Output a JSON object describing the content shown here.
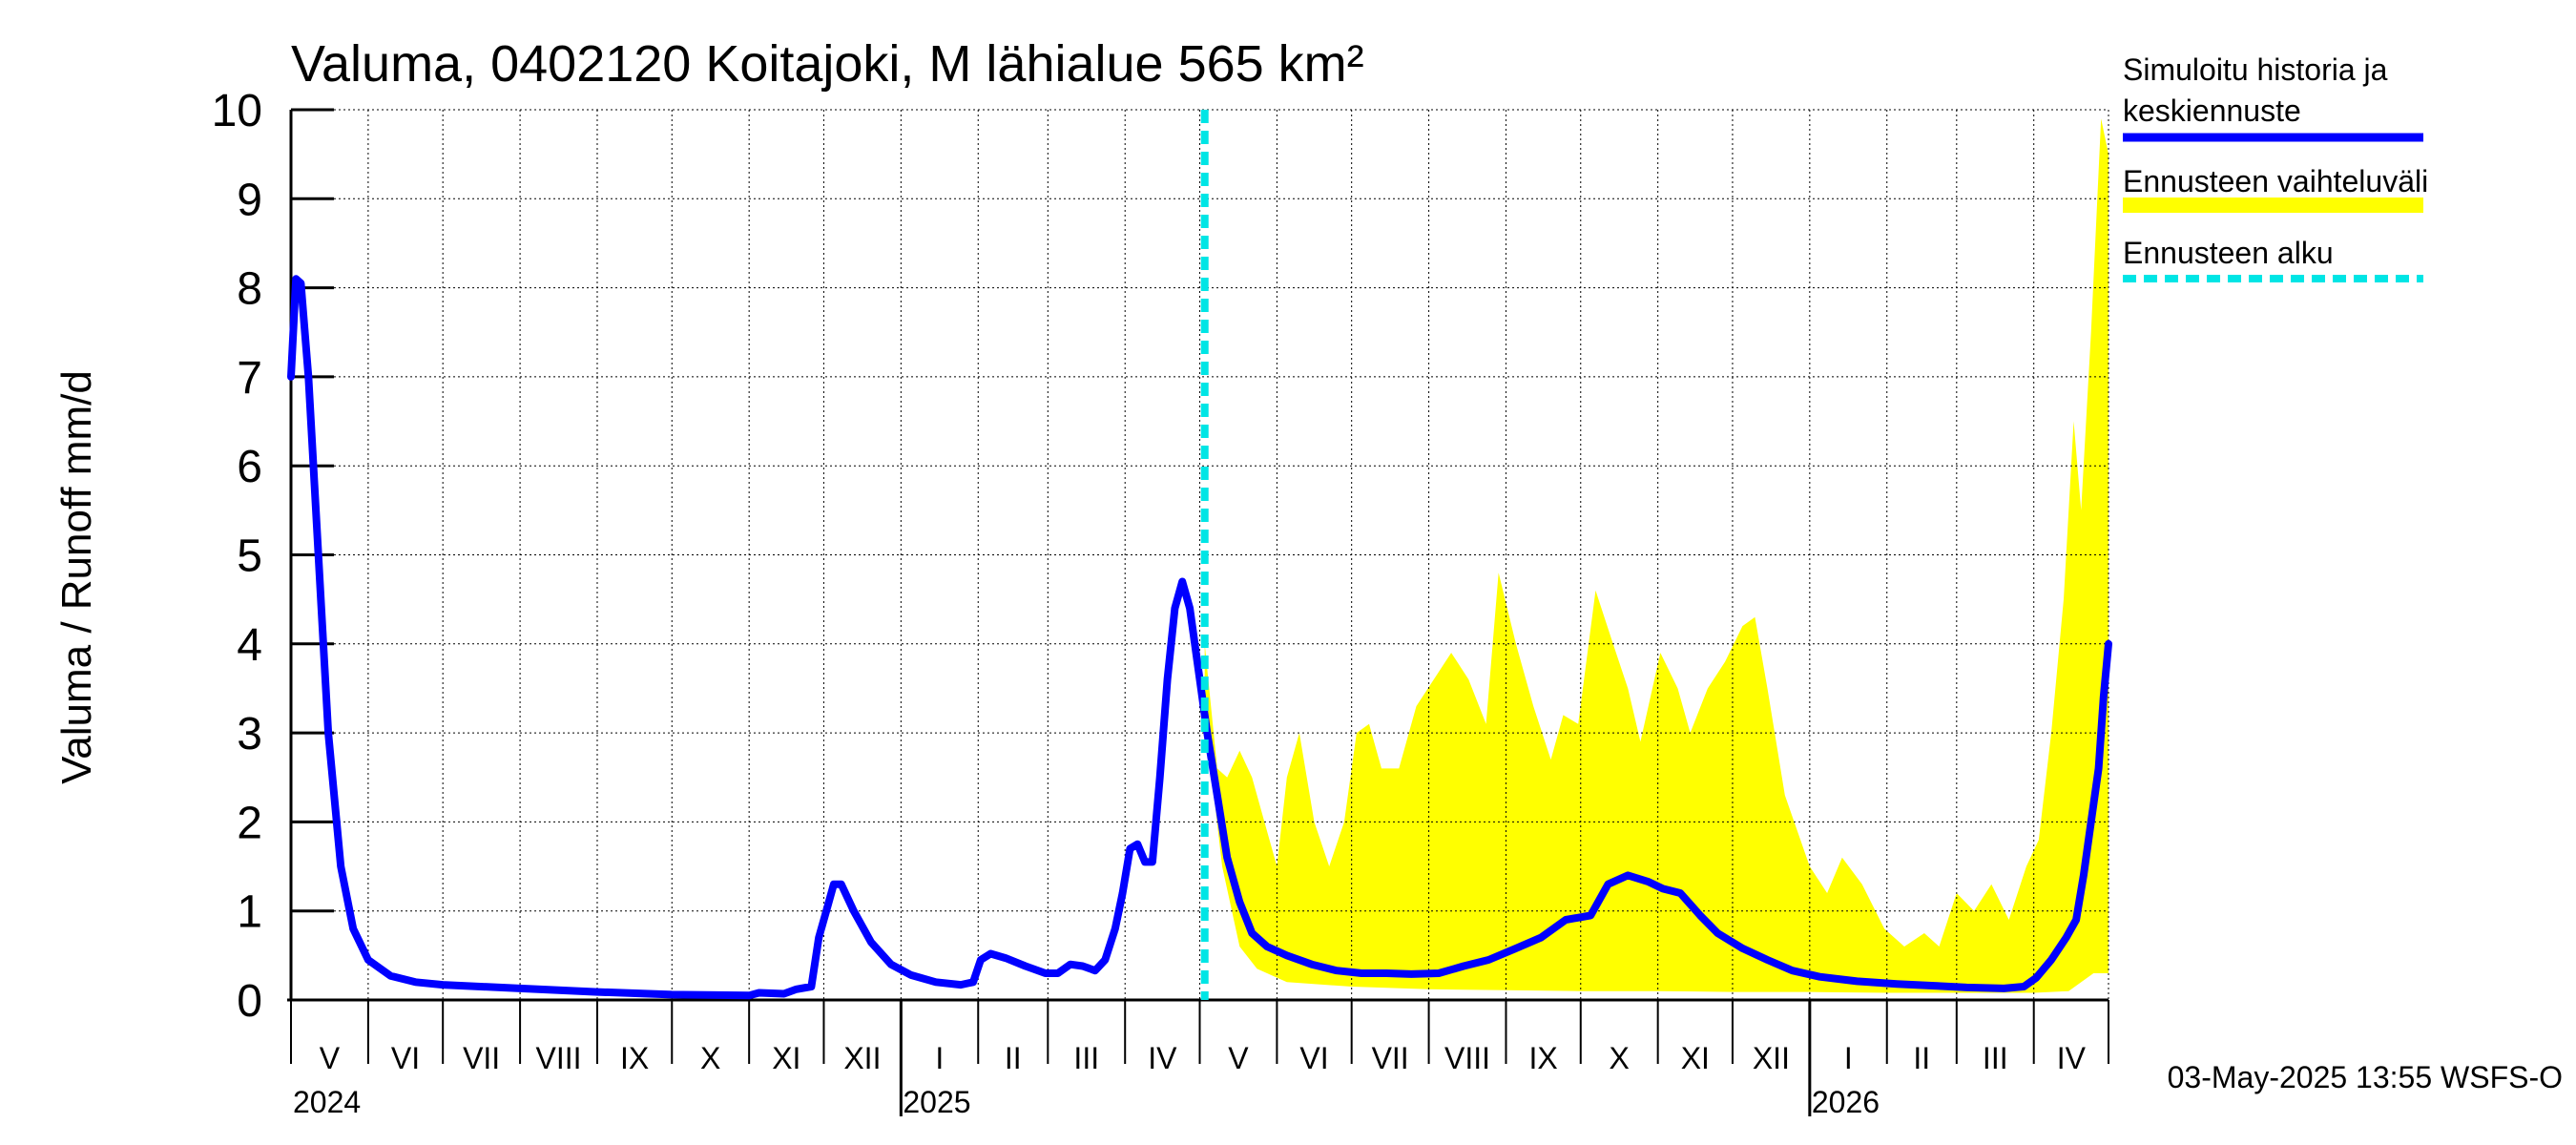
{
  "chart_data": {
    "type": "area",
    "title": "Valuma, 0402120 Koitajoki, M lähialue 565 km²",
    "ylabel": "Valuma / Runoff    mm/d",
    "ylim": [
      0,
      10
    ],
    "yticks": [
      0,
      1,
      2,
      3,
      4,
      5,
      6,
      7,
      8,
      9,
      10
    ],
    "xlim": [
      "2024-05-01",
      "2026-05-01"
    ],
    "month_labels": [
      "V",
      "VI",
      "VII",
      "VIII",
      "IX",
      "X",
      "XI",
      "XII",
      "I",
      "II",
      "III",
      "IV",
      "V",
      "VI",
      "VII",
      "VIII",
      "IX",
      "X",
      "XI",
      "XII",
      "I",
      "II",
      "III",
      "IV"
    ],
    "year_labels": [
      {
        "label": "2024",
        "date": "2024-05-01"
      },
      {
        "label": "2025",
        "date": "2025-01-01"
      },
      {
        "label": "2026",
        "date": "2026-01-01"
      }
    ],
    "grid": true,
    "forecast_start": "2025-05-03",
    "legend": {
      "placement": "right",
      "entries": [
        {
          "label": "Simuloitu historia ja keskiennuste",
          "color": "#0000ff",
          "style": "solid"
        },
        {
          "label": "Ennusteen vaihteluväli",
          "color": "#ffff00",
          "style": "band"
        },
        {
          "label": "Ennusteen alku",
          "color": "#00e5e5",
          "style": "dashed"
        }
      ]
    },
    "series": [
      {
        "name": "Simuloitu historia ja keskiennuste",
        "color": "#0000ff",
        "points": [
          [
            "2024-05-01",
            7.0
          ],
          [
            "2024-05-03",
            8.1
          ],
          [
            "2024-05-05",
            8.05
          ],
          [
            "2024-05-08",
            7.0
          ],
          [
            "2024-05-12",
            5.0
          ],
          [
            "2024-05-16",
            3.0
          ],
          [
            "2024-05-21",
            1.5
          ],
          [
            "2024-05-26",
            0.8
          ],
          [
            "2024-06-01",
            0.45
          ],
          [
            "2024-06-10",
            0.27
          ],
          [
            "2024-06-20",
            0.2
          ],
          [
            "2024-07-01",
            0.17
          ],
          [
            "2024-08-01",
            0.13
          ],
          [
            "2024-09-01",
            0.09
          ],
          [
            "2024-10-01",
            0.06
          ],
          [
            "2024-11-01",
            0.05
          ],
          [
            "2024-11-05",
            0.08
          ],
          [
            "2024-11-15",
            0.07
          ],
          [
            "2024-11-20",
            0.12
          ],
          [
            "2024-11-26",
            0.15
          ],
          [
            "2024-11-29",
            0.7
          ],
          [
            "2024-12-02",
            1.0
          ],
          [
            "2024-12-05",
            1.3
          ],
          [
            "2024-12-08",
            1.3
          ],
          [
            "2024-12-13",
            1.0
          ],
          [
            "2024-12-20",
            0.65
          ],
          [
            "2024-12-28",
            0.4
          ],
          [
            "2025-01-05",
            0.28
          ],
          [
            "2025-01-15",
            0.2
          ],
          [
            "2025-01-25",
            0.17
          ],
          [
            "2025-01-30",
            0.2
          ],
          [
            "2025-02-02",
            0.45
          ],
          [
            "2025-02-06",
            0.52
          ],
          [
            "2025-02-12",
            0.47
          ],
          [
            "2025-02-20",
            0.38
          ],
          [
            "2025-02-28",
            0.3
          ],
          [
            "2025-03-05",
            0.3
          ],
          [
            "2025-03-10",
            0.4
          ],
          [
            "2025-03-15",
            0.38
          ],
          [
            "2025-03-20",
            0.33
          ],
          [
            "2025-03-24",
            0.45
          ],
          [
            "2025-03-28",
            0.8
          ],
          [
            "2025-03-31",
            1.2
          ],
          [
            "2025-04-03",
            1.7
          ],
          [
            "2025-04-06",
            1.75
          ],
          [
            "2025-04-09",
            1.55
          ],
          [
            "2025-04-12",
            1.55
          ],
          [
            "2025-04-15",
            2.5
          ],
          [
            "2025-04-18",
            3.6
          ],
          [
            "2025-04-21",
            4.4
          ],
          [
            "2025-04-24",
            4.7
          ],
          [
            "2025-04-27",
            4.4
          ],
          [
            "2025-05-01",
            3.6
          ],
          [
            "2025-05-04",
            3.0
          ],
          [
            "2025-05-08",
            2.3
          ],
          [
            "2025-05-12",
            1.6
          ],
          [
            "2025-05-17",
            1.1
          ],
          [
            "2025-05-22",
            0.75
          ],
          [
            "2025-05-28",
            0.6
          ],
          [
            "2025-06-05",
            0.5
          ],
          [
            "2025-06-15",
            0.4
          ],
          [
            "2025-06-25",
            0.33
          ],
          [
            "2025-07-05",
            0.3
          ],
          [
            "2025-07-15",
            0.3
          ],
          [
            "2025-07-25",
            0.29
          ],
          [
            "2025-08-05",
            0.3
          ],
          [
            "2025-08-15",
            0.38
          ],
          [
            "2025-08-25",
            0.45
          ],
          [
            "2025-09-05",
            0.58
          ],
          [
            "2025-09-15",
            0.7
          ],
          [
            "2025-09-25",
            0.9
          ],
          [
            "2025-10-05",
            0.95
          ],
          [
            "2025-10-12",
            1.3
          ],
          [
            "2025-10-20",
            1.4
          ],
          [
            "2025-10-28",
            1.33
          ],
          [
            "2025-11-03",
            1.25
          ],
          [
            "2025-11-10",
            1.2
          ],
          [
            "2025-11-18",
            0.95
          ],
          [
            "2025-11-25",
            0.75
          ],
          [
            "2025-12-05",
            0.58
          ],
          [
            "2025-12-15",
            0.45
          ],
          [
            "2025-12-25",
            0.33
          ],
          [
            "2026-01-05",
            0.26
          ],
          [
            "2026-01-20",
            0.21
          ],
          [
            "2026-02-05",
            0.18
          ],
          [
            "2026-02-20",
            0.16
          ],
          [
            "2026-03-05",
            0.14
          ],
          [
            "2026-03-20",
            0.13
          ],
          [
            "2026-03-28",
            0.15
          ],
          [
            "2026-04-02",
            0.25
          ],
          [
            "2026-04-08",
            0.45
          ],
          [
            "2026-04-14",
            0.7
          ],
          [
            "2026-04-18",
            0.9
          ],
          [
            "2026-04-21",
            1.4
          ],
          [
            "2026-04-24",
            2.0
          ],
          [
            "2026-04-27",
            2.6
          ],
          [
            "2026-04-29",
            3.4
          ],
          [
            "2026-05-01",
            4.0
          ]
        ]
      },
      {
        "name": "Ennusteen vaihteluväli",
        "color": "#ffff00",
        "upper": [
          [
            "2025-05-03",
            4.0
          ],
          [
            "2025-05-08",
            2.6
          ],
          [
            "2025-05-12",
            2.5
          ],
          [
            "2025-05-17",
            2.8
          ],
          [
            "2025-05-22",
            2.5
          ],
          [
            "2025-05-27",
            2.0
          ],
          [
            "2025-06-01",
            1.5
          ],
          [
            "2025-06-05",
            2.5
          ],
          [
            "2025-06-10",
            3.0
          ],
          [
            "2025-06-16",
            2.0
          ],
          [
            "2025-06-22",
            1.5
          ],
          [
            "2025-06-28",
            2.0
          ],
          [
            "2025-07-03",
            3.0
          ],
          [
            "2025-07-08",
            3.1
          ],
          [
            "2025-07-13",
            2.6
          ],
          [
            "2025-07-20",
            2.6
          ],
          [
            "2025-07-27",
            3.3
          ],
          [
            "2025-08-03",
            3.6
          ],
          [
            "2025-08-10",
            3.9
          ],
          [
            "2025-08-17",
            3.6
          ],
          [
            "2025-08-24",
            3.1
          ],
          [
            "2025-08-29",
            4.8
          ],
          [
            "2025-09-05",
            4.0
          ],
          [
            "2025-09-12",
            3.3
          ],
          [
            "2025-09-19",
            2.7
          ],
          [
            "2025-09-24",
            3.2
          ],
          [
            "2025-09-30",
            3.1
          ],
          [
            "2025-10-07",
            4.6
          ],
          [
            "2025-10-14",
            4.0
          ],
          [
            "2025-10-20",
            3.5
          ],
          [
            "2025-10-25",
            2.9
          ],
          [
            "2025-11-02",
            3.9
          ],
          [
            "2025-11-09",
            3.5
          ],
          [
            "2025-11-14",
            3.0
          ],
          [
            "2025-11-21",
            3.5
          ],
          [
            "2025-11-28",
            3.8
          ],
          [
            "2025-12-05",
            4.2
          ],
          [
            "2025-12-10",
            4.3
          ],
          [
            "2025-12-15",
            3.5
          ],
          [
            "2025-12-22",
            2.3
          ],
          [
            "2026-01-01",
            1.5
          ],
          [
            "2026-01-08",
            1.2
          ],
          [
            "2026-01-14",
            1.6
          ],
          [
            "2026-01-22",
            1.3
          ],
          [
            "2026-01-31",
            0.8
          ],
          [
            "2026-02-08",
            0.6
          ],
          [
            "2026-02-16",
            0.75
          ],
          [
            "2026-02-22",
            0.6
          ],
          [
            "2026-03-01",
            1.2
          ],
          [
            "2026-03-08",
            1.0
          ],
          [
            "2026-03-15",
            1.3
          ],
          [
            "2026-03-22",
            0.9
          ],
          [
            "2026-03-29",
            1.5
          ],
          [
            "2026-04-03",
            1.8
          ],
          [
            "2026-04-08",
            3.0
          ],
          [
            "2026-04-13",
            4.5
          ],
          [
            "2026-04-17",
            6.5
          ],
          [
            "2026-04-20",
            5.5
          ],
          [
            "2026-04-24",
            7.5
          ],
          [
            "2026-04-28",
            9.9
          ],
          [
            "2026-05-01",
            9.5
          ]
        ],
        "lower": [
          [
            "2025-05-03",
            3.2
          ],
          [
            "2025-05-10",
            1.5
          ],
          [
            "2025-05-17",
            0.6
          ],
          [
            "2025-05-24",
            0.35
          ],
          [
            "2025-06-05",
            0.2
          ],
          [
            "2025-07-01",
            0.15
          ],
          [
            "2025-08-01",
            0.12
          ],
          [
            "2025-09-01",
            0.11
          ],
          [
            "2025-10-01",
            0.1
          ],
          [
            "2025-11-01",
            0.1
          ],
          [
            "2025-12-01",
            0.09
          ],
          [
            "2026-01-01",
            0.09
          ],
          [
            "2026-02-01",
            0.08
          ],
          [
            "2026-03-01",
            0.08
          ],
          [
            "2026-04-01",
            0.08
          ],
          [
            "2026-04-15",
            0.1
          ],
          [
            "2026-04-25",
            0.3
          ],
          [
            "2026-05-01",
            0.3
          ]
        ]
      }
    ]
  },
  "footer": {
    "timestamp": "03-May-2025 13:55 WSFS-O"
  }
}
